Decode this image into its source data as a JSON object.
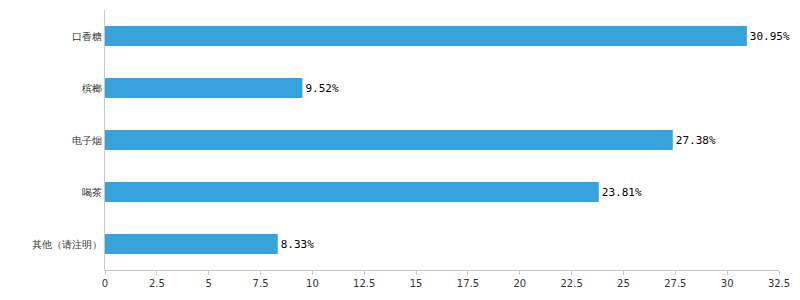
{
  "chart_data": {
    "type": "bar",
    "orientation": "horizontal",
    "categories": [
      "口香糖",
      "槟榔",
      "电子烟",
      "喝茶",
      "其他（请注明）"
    ],
    "values": [
      30.95,
      9.52,
      27.38,
      23.81,
      8.33
    ],
    "value_labels": [
      "30.95%",
      "9.52%",
      "27.38%",
      "23.81%",
      "8.33%"
    ],
    "data_labels": true,
    "color": "#36a3dc",
    "xlim": [
      0,
      32.5
    ],
    "xticks": [
      0,
      2.5,
      5,
      7.5,
      10,
      12.5,
      15,
      17.5,
      20,
      22.5,
      25,
      27.5,
      30,
      32.5
    ],
    "grid": false
  }
}
